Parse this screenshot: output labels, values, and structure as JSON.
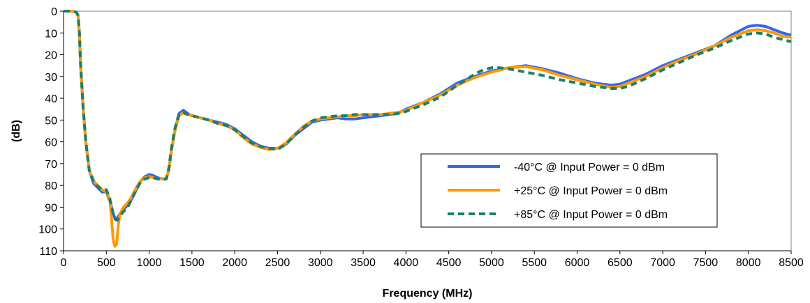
{
  "chart_data": {
    "type": "line",
    "title": "",
    "xlabel": "Frequency (MHz)",
    "ylabel": "(dB)",
    "xlim": [
      0,
      8500
    ],
    "ylim": [
      0,
      110
    ],
    "y_inverted": true,
    "xticks": [
      0,
      500,
      1000,
      1500,
      2000,
      2500,
      3000,
      3500,
      4000,
      4500,
      5000,
      5500,
      6000,
      6500,
      7000,
      7500,
      8000,
      8500
    ],
    "yticks": [
      0,
      10,
      20,
      30,
      40,
      50,
      60,
      70,
      80,
      90,
      100,
      110
    ],
    "grid": false,
    "legend_position": "bottom-right",
    "series": [
      {
        "name": "-40°C @  Input Power = 0 dBm",
        "color": "#3366ee",
        "style": "solid",
        "points": [
          [
            0,
            0
          ],
          [
            100,
            0
          ],
          [
            150,
            0.5
          ],
          [
            170,
            2
          ],
          [
            185,
            10
          ],
          [
            200,
            25
          ],
          [
            230,
            45
          ],
          [
            260,
            60
          ],
          [
            300,
            73
          ],
          [
            350,
            79
          ],
          [
            400,
            81
          ],
          [
            450,
            83
          ],
          [
            500,
            83
          ],
          [
            540,
            87
          ],
          [
            580,
            93
          ],
          [
            600,
            95
          ],
          [
            630,
            95
          ],
          [
            660,
            93
          ],
          [
            700,
            91
          ],
          [
            750,
            89
          ],
          [
            800,
            86
          ],
          [
            850,
            82
          ],
          [
            900,
            78
          ],
          [
            950,
            76
          ],
          [
            1000,
            75
          ],
          [
            1050,
            75.5
          ],
          [
            1100,
            76.5
          ],
          [
            1150,
            77
          ],
          [
            1200,
            77
          ],
          [
            1230,
            73
          ],
          [
            1260,
            64
          ],
          [
            1300,
            55
          ],
          [
            1350,
            47
          ],
          [
            1400,
            45.5
          ],
          [
            1450,
            47
          ],
          [
            1500,
            48
          ],
          [
            1600,
            49
          ],
          [
            1700,
            50
          ],
          [
            1800,
            51
          ],
          [
            1900,
            52
          ],
          [
            2000,
            54
          ],
          [
            2100,
            57
          ],
          [
            2200,
            60
          ],
          [
            2300,
            62
          ],
          [
            2400,
            63
          ],
          [
            2500,
            63
          ],
          [
            2600,
            61
          ],
          [
            2700,
            57
          ],
          [
            2800,
            54
          ],
          [
            2900,
            51
          ],
          [
            3000,
            50
          ],
          [
            3100,
            49.5
          ],
          [
            3200,
            49
          ],
          [
            3300,
            49.5
          ],
          [
            3400,
            49.5
          ],
          [
            3500,
            49
          ],
          [
            3600,
            48.5
          ],
          [
            3700,
            48
          ],
          [
            3800,
            47.5
          ],
          [
            3900,
            47
          ],
          [
            4000,
            45
          ],
          [
            4200,
            42
          ],
          [
            4400,
            38
          ],
          [
            4600,
            33
          ],
          [
            4800,
            30
          ],
          [
            5000,
            27.5
          ],
          [
            5200,
            26
          ],
          [
            5400,
            25
          ],
          [
            5600,
            26.5
          ],
          [
            5800,
            28.5
          ],
          [
            6000,
            31
          ],
          [
            6200,
            33
          ],
          [
            6400,
            34
          ],
          [
            6500,
            33.5
          ],
          [
            6600,
            32
          ],
          [
            6800,
            29
          ],
          [
            7000,
            25
          ],
          [
            7200,
            22
          ],
          [
            7400,
            19
          ],
          [
            7600,
            16
          ],
          [
            7800,
            11
          ],
          [
            8000,
            7
          ],
          [
            8100,
            6.5
          ],
          [
            8200,
            7
          ],
          [
            8300,
            8.5
          ],
          [
            8400,
            10
          ],
          [
            8500,
            11
          ]
        ]
      },
      {
        "name": "+25°C @  Input Power = 0 dBm",
        "color": "#ff9900",
        "style": "solid",
        "points": [
          [
            0,
            0
          ],
          [
            100,
            0
          ],
          [
            150,
            0.5
          ],
          [
            170,
            2
          ],
          [
            185,
            10
          ],
          [
            200,
            25
          ],
          [
            230,
            45
          ],
          [
            260,
            60
          ],
          [
            300,
            73
          ],
          [
            350,
            78
          ],
          [
            400,
            80
          ],
          [
            450,
            82
          ],
          [
            500,
            83
          ],
          [
            540,
            86
          ],
          [
            560,
            95
          ],
          [
            580,
            105
          ],
          [
            600,
            108
          ],
          [
            620,
            107
          ],
          [
            640,
            98
          ],
          [
            660,
            93
          ],
          [
            700,
            90
          ],
          [
            750,
            88
          ],
          [
            800,
            85
          ],
          [
            850,
            81
          ],
          [
            900,
            78
          ],
          [
            950,
            76.5
          ],
          [
            1000,
            76
          ],
          [
            1050,
            76.5
          ],
          [
            1100,
            77
          ],
          [
            1150,
            77
          ],
          [
            1200,
            77
          ],
          [
            1230,
            73
          ],
          [
            1260,
            64
          ],
          [
            1300,
            55
          ],
          [
            1350,
            48
          ],
          [
            1400,
            46.5
          ],
          [
            1450,
            47.5
          ],
          [
            1500,
            48
          ],
          [
            1600,
            49
          ],
          [
            1700,
            50
          ],
          [
            1800,
            51.5
          ],
          [
            1900,
            52.5
          ],
          [
            2000,
            54.5
          ],
          [
            2100,
            58
          ],
          [
            2200,
            61
          ],
          [
            2300,
            62.5
          ],
          [
            2400,
            63.5
          ],
          [
            2500,
            63
          ],
          [
            2600,
            60.5
          ],
          [
            2700,
            56.5
          ],
          [
            2800,
            53
          ],
          [
            2900,
            50.5
          ],
          [
            3000,
            49.5
          ],
          [
            3100,
            49
          ],
          [
            3200,
            48.5
          ],
          [
            3300,
            48
          ],
          [
            3400,
            48
          ],
          [
            3500,
            47.5
          ],
          [
            3600,
            47.5
          ],
          [
            3700,
            47.5
          ],
          [
            3800,
            47
          ],
          [
            3900,
            46.5
          ],
          [
            4000,
            45.5
          ],
          [
            4200,
            42
          ],
          [
            4400,
            38.5
          ],
          [
            4600,
            34
          ],
          [
            4800,
            30.5
          ],
          [
            5000,
            28
          ],
          [
            5200,
            26
          ],
          [
            5400,
            25.5
          ],
          [
            5600,
            27
          ],
          [
            5800,
            29.5
          ],
          [
            6000,
            31.5
          ],
          [
            6200,
            33.5
          ],
          [
            6400,
            35
          ],
          [
            6500,
            34.5
          ],
          [
            6600,
            33
          ],
          [
            6800,
            30
          ],
          [
            7000,
            26
          ],
          [
            7200,
            22.5
          ],
          [
            7400,
            19.5
          ],
          [
            7600,
            16
          ],
          [
            7800,
            12
          ],
          [
            8000,
            9
          ],
          [
            8100,
            8.5
          ],
          [
            8200,
            9
          ],
          [
            8300,
            10
          ],
          [
            8400,
            11.5
          ],
          [
            8500,
            12
          ]
        ]
      },
      {
        "name": "+85°C @  Input Power = 0 dBm",
        "color": "#1a7f6a",
        "style": "dashed",
        "points": [
          [
            0,
            0
          ],
          [
            100,
            0
          ],
          [
            150,
            0.5
          ],
          [
            170,
            2
          ],
          [
            185,
            10
          ],
          [
            200,
            25
          ],
          [
            230,
            45
          ],
          [
            260,
            60
          ],
          [
            300,
            73
          ],
          [
            350,
            78
          ],
          [
            400,
            80.5
          ],
          [
            450,
            82
          ],
          [
            500,
            82
          ],
          [
            540,
            86
          ],
          [
            580,
            93
          ],
          [
            600,
            95.5
          ],
          [
            630,
            96
          ],
          [
            660,
            94
          ],
          [
            700,
            92
          ],
          [
            750,
            90
          ],
          [
            800,
            86
          ],
          [
            850,
            82
          ],
          [
            900,
            78.5
          ],
          [
            950,
            77
          ],
          [
            1000,
            76.5
          ],
          [
            1050,
            76.5
          ],
          [
            1100,
            77
          ],
          [
            1150,
            77.5
          ],
          [
            1200,
            77
          ],
          [
            1230,
            72
          ],
          [
            1260,
            63
          ],
          [
            1300,
            54
          ],
          [
            1350,
            47
          ],
          [
            1400,
            46.5
          ],
          [
            1450,
            47.5
          ],
          [
            1500,
            48
          ],
          [
            1600,
            49
          ],
          [
            1700,
            50
          ],
          [
            1800,
            51.5
          ],
          [
            1900,
            52.5
          ],
          [
            2000,
            54.5
          ],
          [
            2100,
            57.5
          ],
          [
            2200,
            60.5
          ],
          [
            2300,
            62
          ],
          [
            2400,
            63
          ],
          [
            2500,
            63.5
          ],
          [
            2600,
            61
          ],
          [
            2700,
            57
          ],
          [
            2800,
            53.5
          ],
          [
            2900,
            50.5
          ],
          [
            3000,
            49
          ],
          [
            3100,
            48.5
          ],
          [
            3200,
            48
          ],
          [
            3300,
            48
          ],
          [
            3400,
            47.5
          ],
          [
            3500,
            47.5
          ],
          [
            3600,
            47.5
          ],
          [
            3700,
            47.5
          ],
          [
            3800,
            47.5
          ],
          [
            3900,
            47
          ],
          [
            4000,
            46
          ],
          [
            4200,
            43
          ],
          [
            4400,
            39.5
          ],
          [
            4600,
            34
          ],
          [
            4800,
            29
          ],
          [
            4900,
            27
          ],
          [
            5000,
            26
          ],
          [
            5100,
            26
          ],
          [
            5200,
            26.5
          ],
          [
            5400,
            28
          ],
          [
            5600,
            29.5
          ],
          [
            5800,
            31.5
          ],
          [
            6000,
            33
          ],
          [
            6200,
            34.5
          ],
          [
            6400,
            35.5
          ],
          [
            6500,
            35.5
          ],
          [
            6600,
            34.5
          ],
          [
            6800,
            31
          ],
          [
            7000,
            27
          ],
          [
            7200,
            23.5
          ],
          [
            7400,
            20
          ],
          [
            7600,
            17
          ],
          [
            7800,
            13.5
          ],
          [
            8000,
            10.5
          ],
          [
            8100,
            10
          ],
          [
            8200,
            10.5
          ],
          [
            8300,
            12
          ],
          [
            8400,
            13
          ],
          [
            8500,
            14
          ]
        ]
      }
    ]
  }
}
